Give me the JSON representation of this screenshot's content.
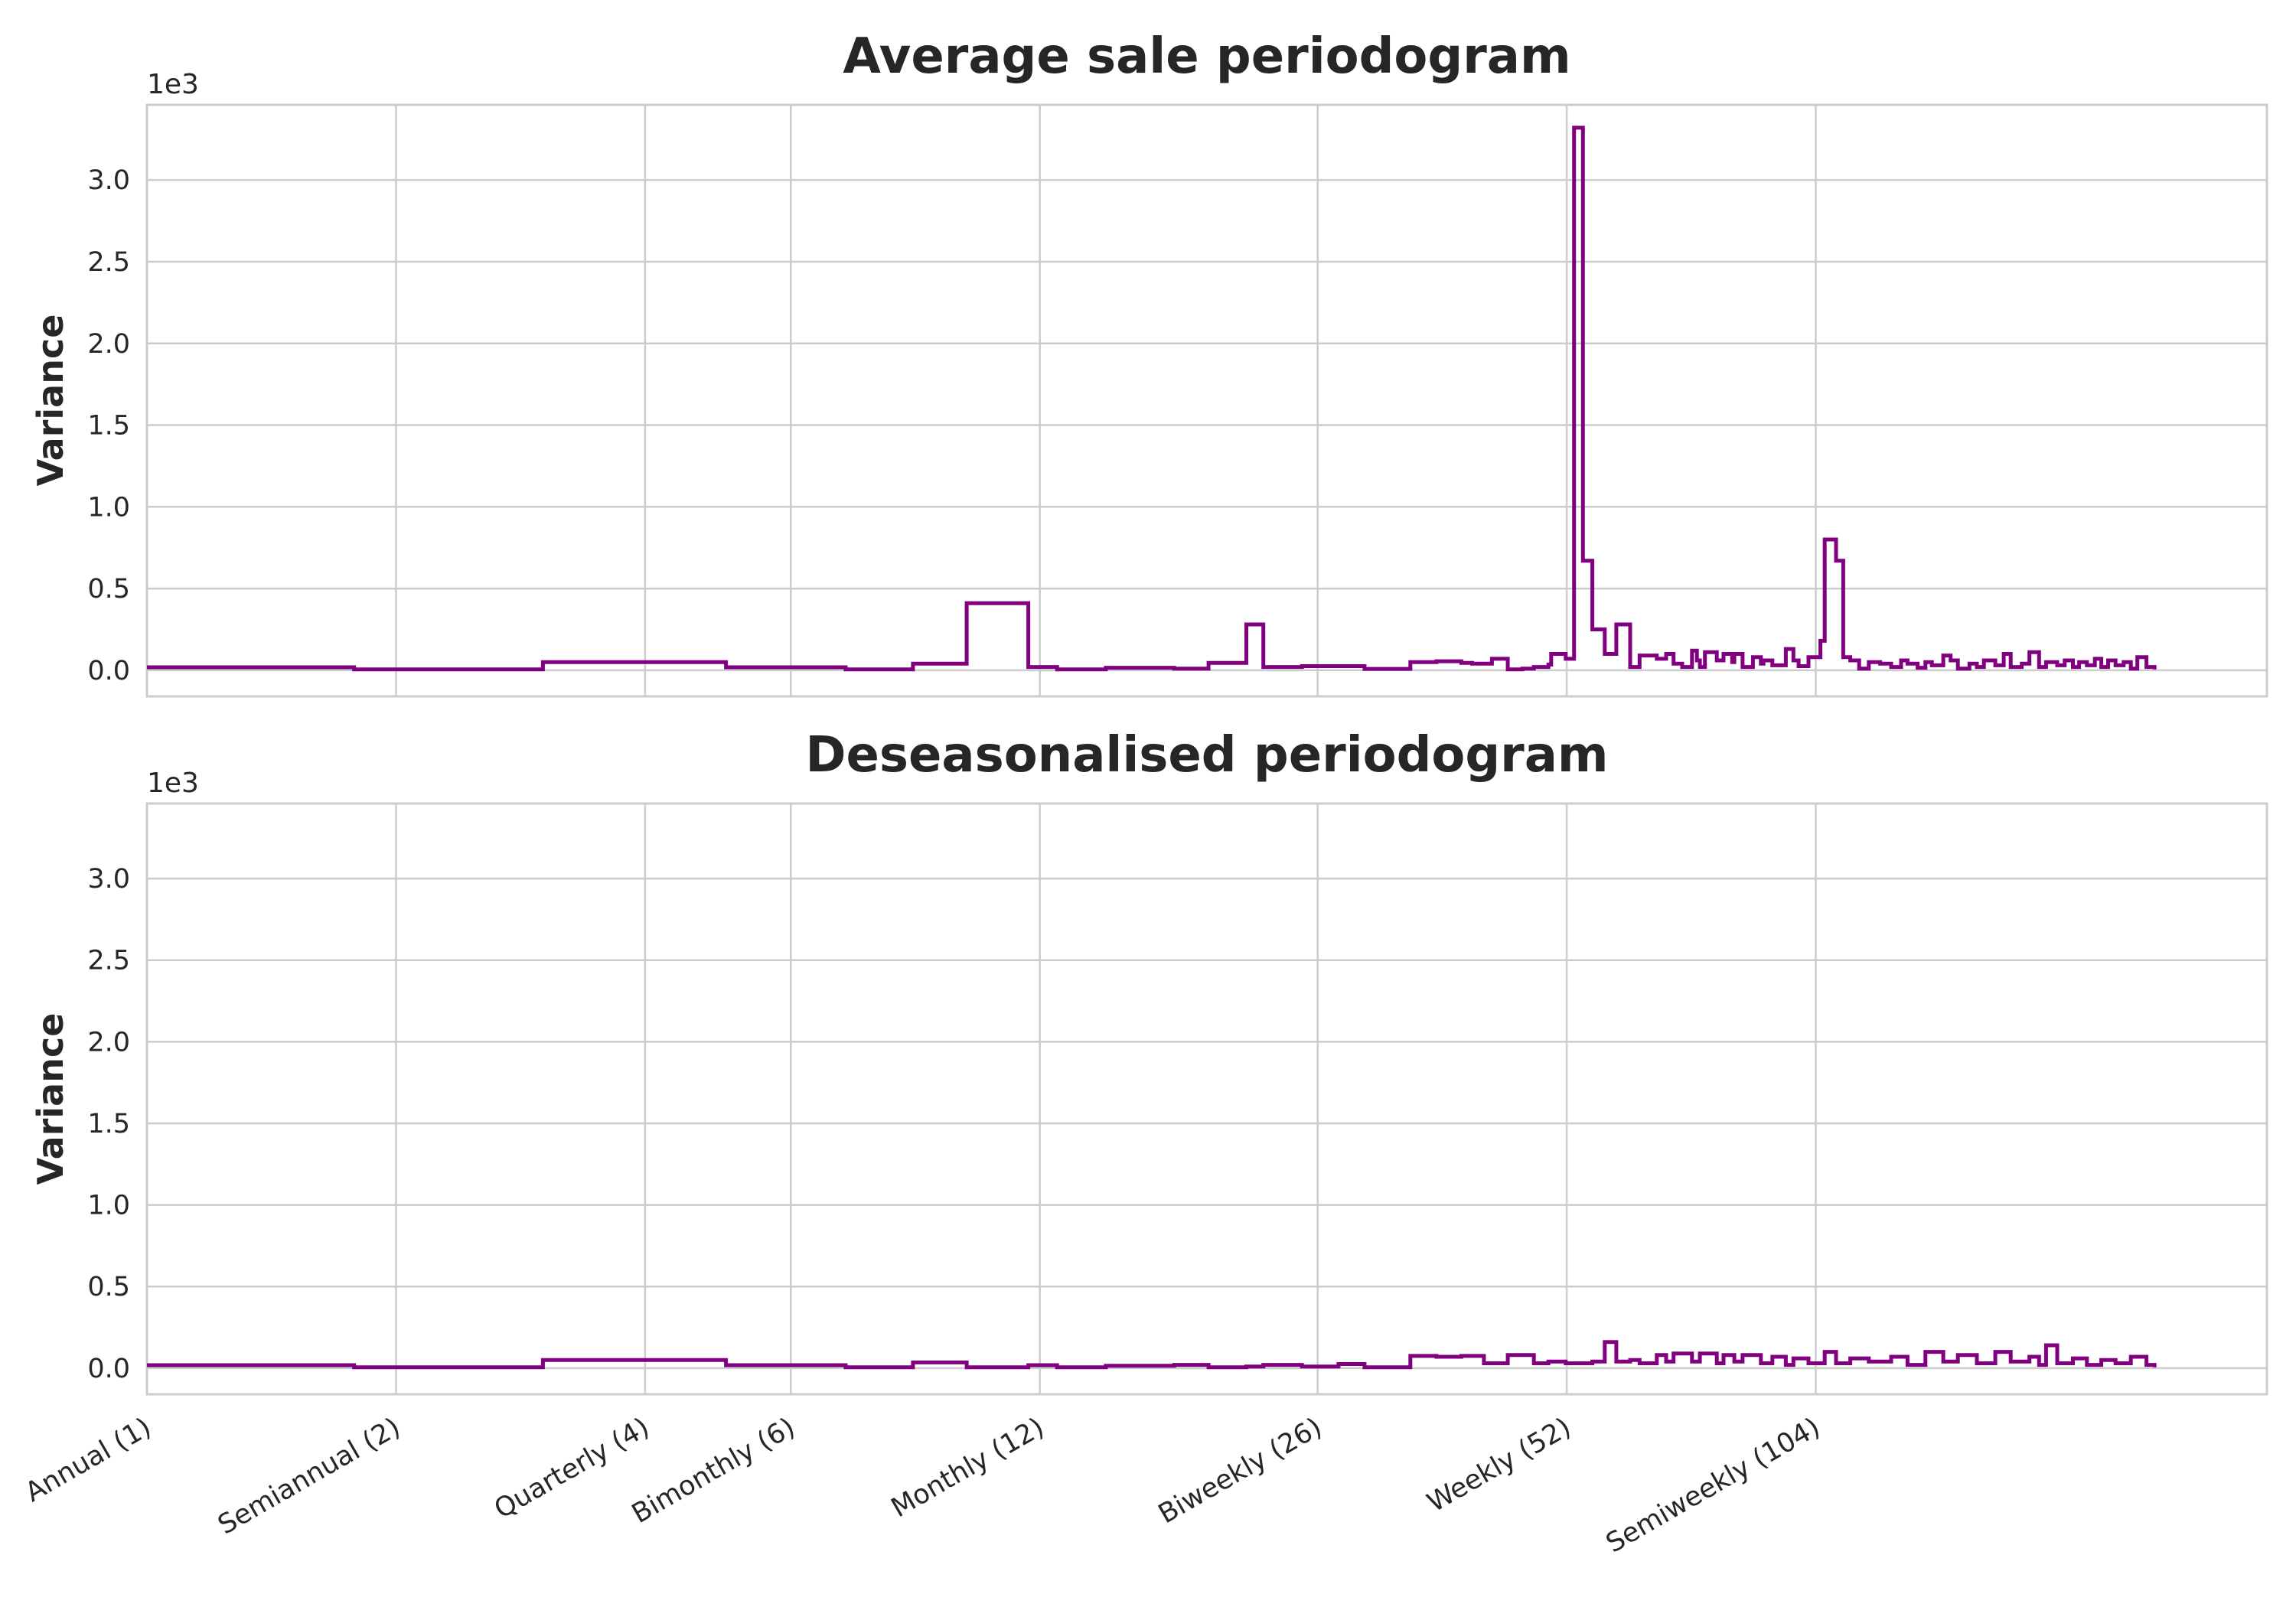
{
  "chart_data": [
    {
      "type": "line",
      "drawstyle": "steps",
      "title": "Average sale periodogram",
      "ylabel": "Variance",
      "y_offset_label": "1e3",
      "ylim": [
        -0.16,
        3.46
      ],
      "yticks": [
        "0.0",
        "0.5",
        "1.0",
        "1.5",
        "2.0",
        "2.5",
        "3.0"
      ],
      "xscale": "log",
      "xlim": [
        1,
        365
      ],
      "xticks": [
        {
          "value": 1,
          "label": "Annual (1)"
        },
        {
          "value": 2,
          "label": "Semiannual (2)"
        },
        {
          "value": 4,
          "label": "Quarterly (4)"
        },
        {
          "value": 6,
          "label": "Bimonthly (6)"
        },
        {
          "value": 12,
          "label": "Monthly (12)"
        },
        {
          "value": 26,
          "label": "Biweekly (26)"
        },
        {
          "value": 52,
          "label": "Weekly (52)"
        },
        {
          "value": 104,
          "label": "Semiweekly (104)"
        }
      ],
      "grid": true,
      "color": "#800080",
      "x": [
        1.0,
        1.78,
        3.01,
        5.01,
        6.99,
        8.43,
        9.79,
        11.62,
        12.59,
        14.42,
        17.44,
        19.19,
        21.32,
        22.35,
        24.89,
        29.62,
        33.65,
        36.19,
        38.78,
        39.96,
        42.23,
        44.13,
        45.98,
        47.46,
        49.42,
        49.8,
        51.86,
        53.07,
        54.4,
        55.84,
        57.8,
        59.7,
        62.04,
        63.69,
        66.82,
        68.58,
        70.0,
        71.71,
        73.7,
        74.7,
        75.33,
        76.4,
        78.96,
        80.45,
        82.41,
        82.91,
        84.83,
        87.3,
        89.26,
        89.92,
        92.17,
        95.68,
        97.72,
        99.14,
        101.91,
        105.34,
        106.61,
        110.03,
        112.25,
        114.47,
        117.33,
        120.52,
        124.4,
        128.26,
        131.87,
        134.24,
        138.08,
        141.11,
        143.64,
        148.3,
        151.36,
        154.43,
        159.48,
        162.81,
        166.04,
        171.4,
        175.47,
        178.91,
        184.52,
        188.46,
        193.62,
        197.38,
        203.62,
        207.93,
        212.7,
        216.43,
        221.19,
        226.13,
        230.22,
        234.6,
        239.52,
        244.97,
        249.95,
        254.49,
        261.02,
        267.0
      ],
      "y": [
        0.018,
        0.005,
        0.05,
        0.018,
        0.005,
        0.04,
        0.41,
        0.02,
        0.005,
        0.015,
        0.01,
        0.045,
        0.28,
        0.02,
        0.025,
        0.008,
        0.05,
        0.055,
        0.045,
        0.04,
        0.07,
        0.005,
        0.01,
        0.02,
        0.035,
        0.1,
        0.07,
        3.32,
        0.67,
        0.25,
        0.1,
        0.28,
        0.02,
        0.09,
        0.07,
        0.1,
        0.04,
        0.02,
        0.12,
        0.06,
        0.02,
        0.11,
        0.06,
        0.1,
        0.05,
        0.1,
        0.02,
        0.08,
        0.04,
        0.06,
        0.03,
        0.13,
        0.06,
        0.025,
        0.08,
        0.18,
        0.8,
        0.67,
        0.08,
        0.06,
        0.01,
        0.05,
        0.04,
        0.02,
        0.06,
        0.04,
        0.015,
        0.05,
        0.03,
        0.09,
        0.06,
        0.01,
        0.04,
        0.02,
        0.06,
        0.03,
        0.1,
        0.02,
        0.04,
        0.11,
        0.02,
        0.05,
        0.03,
        0.06,
        0.02,
        0.05,
        0.03,
        0.07,
        0.02,
        0.06,
        0.03,
        0.05,
        0.01,
        0.08,
        0.02,
        0.005
      ]
    },
    {
      "type": "line",
      "drawstyle": "steps",
      "title": "Deseasonalised periodogram",
      "ylabel": "Variance",
      "y_offset_label": "1e3",
      "ylim": [
        -0.16,
        3.46
      ],
      "yticks": [
        "0.0",
        "0.5",
        "1.0",
        "1.5",
        "2.0",
        "2.5",
        "3.0"
      ],
      "xscale": "log",
      "xlim": [
        1,
        365
      ],
      "xticks": [
        {
          "value": 1,
          "label": "Annual (1)"
        },
        {
          "value": 2,
          "label": "Semiannual (2)"
        },
        {
          "value": 4,
          "label": "Quarterly (4)"
        },
        {
          "value": 6,
          "label": "Bimonthly (6)"
        },
        {
          "value": 12,
          "label": "Monthly (12)"
        },
        {
          "value": 26,
          "label": "Biweekly (26)"
        },
        {
          "value": 52,
          "label": "Weekly (52)"
        },
        {
          "value": 104,
          "label": "Semiweekly (104)"
        }
      ],
      "grid": true,
      "color": "#800080",
      "x": [
        1.0,
        1.78,
        3.01,
        5.01,
        6.99,
        8.43,
        9.79,
        11.62,
        12.59,
        14.42,
        17.44,
        19.19,
        21.32,
        22.35,
        24.89,
        27.55,
        29.62,
        33.65,
        36.19,
        38.78,
        41.3,
        44.13,
        47.46,
        49.42,
        51.86,
        55.84,
        57.8,
        59.7,
        62.04,
        63.69,
        66.82,
        68.58,
        70.0,
        73.7,
        75.33,
        78.96,
        80.45,
        82.91,
        84.83,
        89.26,
        92.17,
        95.68,
        97.72,
        101.91,
        106.61,
        110.03,
        114.47,
        120.52,
        128.26,
        134.24,
        141.11,
        148.3,
        154.43,
        162.81,
        171.4,
        178.91,
        188.46,
        193.62,
        197.38,
        203.62,
        212.7,
        221.19,
        230.22,
        239.52,
        249.95,
        261.02,
        267.0
      ],
      "y": [
        0.018,
        0.005,
        0.05,
        0.018,
        0.005,
        0.035,
        0.005,
        0.018,
        0.005,
        0.015,
        0.02,
        0.005,
        0.01,
        0.02,
        0.01,
        0.025,
        0.005,
        0.075,
        0.07,
        0.075,
        0.03,
        0.08,
        0.03,
        0.04,
        0.03,
        0.04,
        0.16,
        0.04,
        0.05,
        0.03,
        0.08,
        0.04,
        0.09,
        0.04,
        0.09,
        0.03,
        0.08,
        0.04,
        0.08,
        0.03,
        0.07,
        0.02,
        0.06,
        0.03,
        0.1,
        0.03,
        0.06,
        0.04,
        0.07,
        0.02,
        0.1,
        0.04,
        0.08,
        0.03,
        0.1,
        0.04,
        0.07,
        0.02,
        0.14,
        0.03,
        0.06,
        0.02,
        0.05,
        0.03,
        0.07,
        0.02,
        0.005
      ]
    }
  ]
}
